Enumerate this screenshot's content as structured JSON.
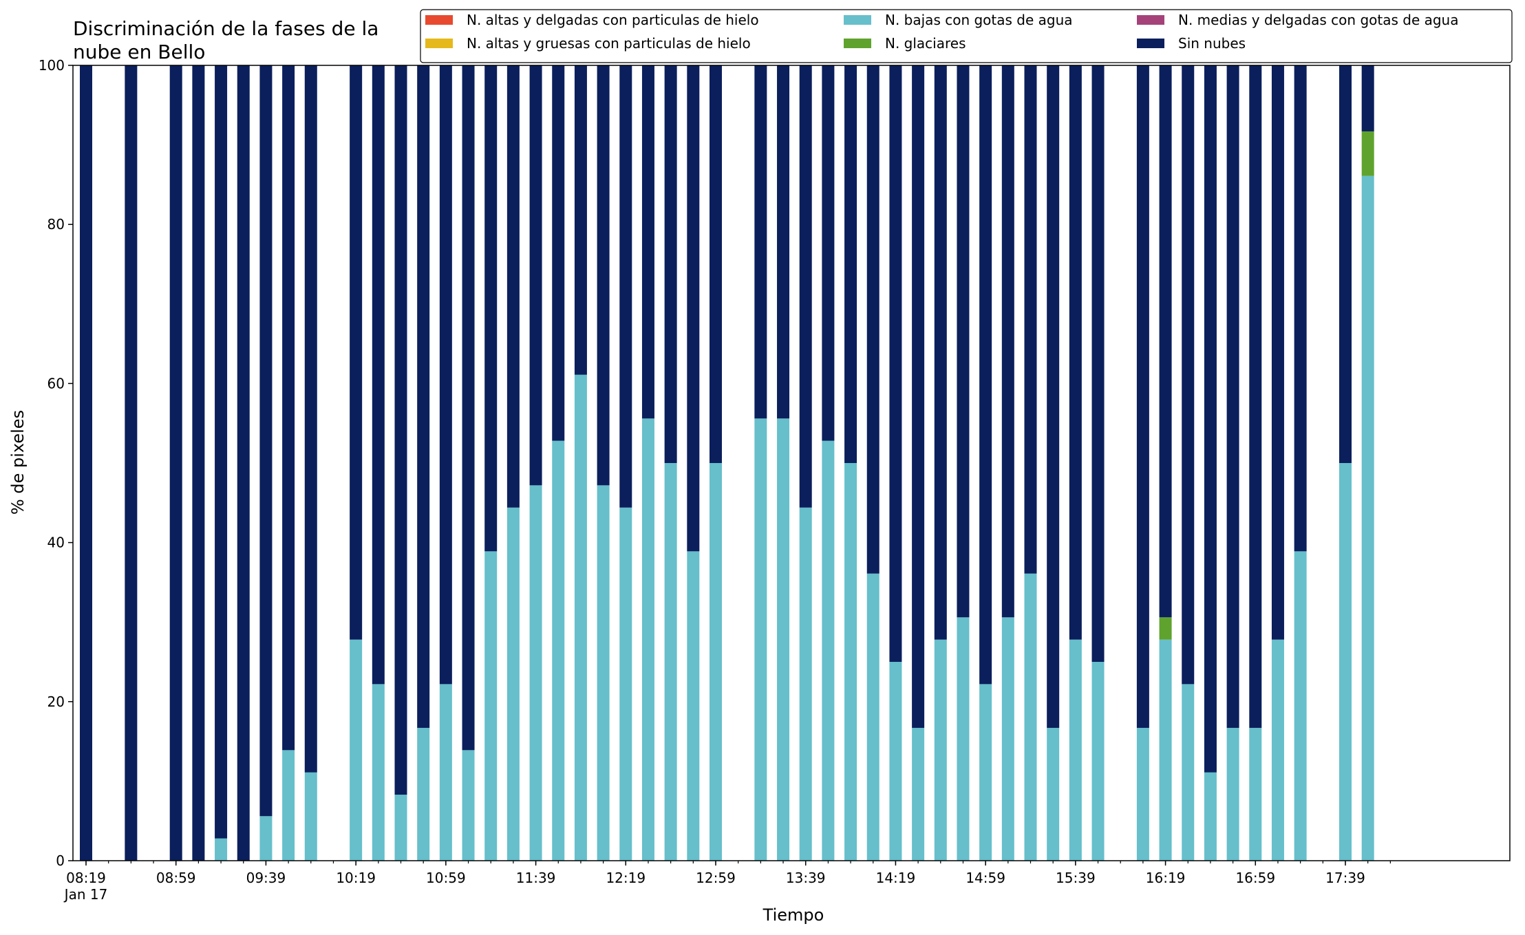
{
  "chart_data": {
    "type": "bar",
    "stacked": true,
    "title": "Discriminación de la fases de la\nnube en Bello",
    "xlabel": "Tiempo",
    "ylabel": "% de pixeles",
    "ylim": [
      0,
      100
    ],
    "yticks": [
      0,
      20,
      40,
      60,
      80,
      100
    ],
    "grid": false,
    "legend_position": "top-right",
    "xticks": [
      {
        "x": "08:19",
        "label": "08:19\nJan 17"
      },
      {
        "x": "08:59",
        "label": "08:59"
      },
      {
        "x": "09:39",
        "label": "09:39"
      },
      {
        "x": "10:19",
        "label": "10:19"
      },
      {
        "x": "10:59",
        "label": "10:59"
      },
      {
        "x": "11:39",
        "label": "11:39"
      },
      {
        "x": "12:19",
        "label": "12:19"
      },
      {
        "x": "12:59",
        "label": "12:59"
      },
      {
        "x": "13:39",
        "label": "13:39"
      },
      {
        "x": "14:19",
        "label": "14:19"
      },
      {
        "x": "14:59",
        "label": "14:59"
      },
      {
        "x": "15:39",
        "label": "15:39"
      },
      {
        "x": "16:19",
        "label": "16:19"
      },
      {
        "x": "16:59",
        "label": "16:59"
      },
      {
        "x": "17:39",
        "label": "17:39"
      }
    ],
    "x": [
      "08:19",
      "08:39",
      "08:59",
      "09:09",
      "09:19",
      "09:29",
      "09:39",
      "09:49",
      "09:59",
      "10:19",
      "10:29",
      "10:39",
      "10:49",
      "10:59",
      "11:09",
      "11:19",
      "11:29",
      "11:39",
      "11:49",
      "11:59",
      "12:09",
      "12:19",
      "12:29",
      "12:39",
      "12:49",
      "12:59",
      "13:19",
      "13:29",
      "13:39",
      "13:49",
      "13:59",
      "14:09",
      "14:19",
      "14:29",
      "14:39",
      "14:49",
      "14:59",
      "15:09",
      "15:19",
      "15:29",
      "15:39",
      "15:49",
      "16:09",
      "16:19",
      "16:29",
      "16:39",
      "16:49",
      "16:59",
      "17:09",
      "17:19",
      "17:39",
      "17:49"
    ],
    "series": [
      {
        "name": "N. altas y delgadas con particulas de hielo",
        "color": "#e84a2f",
        "values": [
          0,
          0,
          0,
          0,
          0,
          0,
          0,
          0,
          0,
          0,
          0,
          0,
          0,
          0,
          0,
          0,
          0,
          0,
          0,
          0,
          0,
          0,
          0,
          0,
          0,
          0,
          0,
          0,
          0,
          0,
          0,
          0,
          0,
          0,
          0,
          0,
          0,
          0,
          0,
          0,
          0,
          0,
          0,
          0,
          0,
          0,
          0,
          0,
          0,
          0,
          0,
          0
        ]
      },
      {
        "name": "N. altas y gruesas con particulas de hielo",
        "color": "#e5b91c",
        "values": [
          0,
          0,
          0,
          0,
          0,
          0,
          0,
          0,
          0,
          0,
          0,
          0,
          0,
          0,
          0,
          0,
          0,
          0,
          0,
          0,
          0,
          0,
          0,
          0,
          0,
          0,
          0,
          0,
          0,
          0,
          0,
          0,
          0,
          0,
          0,
          0,
          0,
          0,
          0,
          0,
          0,
          0,
          0,
          0,
          0,
          0,
          0,
          0,
          0,
          0,
          0,
          0
        ]
      },
      {
        "name": "N. bajas con gotas de agua",
        "color": "#66bfcb",
        "values": [
          0,
          0,
          0,
          0,
          2.8,
          0,
          5.6,
          13.9,
          11.1,
          27.8,
          22.2,
          8.3,
          16.7,
          22.2,
          13.9,
          38.9,
          44.4,
          47.2,
          52.8,
          61.1,
          47.2,
          44.4,
          55.6,
          50,
          38.9,
          50,
          55.6,
          55.6,
          44.4,
          52.8,
          50,
          36.1,
          25,
          16.7,
          27.8,
          30.6,
          22.2,
          30.6,
          36.1,
          16.7,
          27.8,
          25,
          16.7,
          27.8,
          22.2,
          11.1,
          16.7,
          16.7,
          27.8,
          38.9,
          50,
          86.1
        ]
      },
      {
        "name": "N. glaciares",
        "color": "#5fa32e",
        "values": [
          0,
          0,
          0,
          0,
          0,
          0,
          0,
          0,
          0,
          0,
          0,
          0,
          0,
          0,
          0,
          0,
          0,
          0,
          0,
          0,
          0,
          0,
          0,
          0,
          0,
          0,
          0,
          0,
          0,
          0,
          0,
          0,
          0,
          0,
          0,
          0,
          0,
          0,
          0,
          0,
          0,
          0,
          0,
          2.8,
          0,
          0,
          0,
          0,
          0,
          0,
          0,
          5.6
        ]
      },
      {
        "name": "N. medias y delgadas con gotas de agua",
        "color": "#a5427a",
        "values": [
          0,
          0,
          0,
          0,
          0,
          0,
          0,
          0,
          0,
          0,
          0,
          0,
          0,
          0,
          0,
          0,
          0,
          0,
          0,
          0,
          0,
          0,
          0,
          0,
          0,
          0,
          0,
          0,
          0,
          0,
          0,
          0,
          0,
          0,
          0,
          0,
          0,
          0,
          0,
          0,
          0,
          0,
          0,
          0,
          0,
          0,
          0,
          0,
          0,
          0,
          0,
          0
        ]
      },
      {
        "name": "Sin nubes",
        "color": "#0b1f5c",
        "values": [
          100,
          100,
          100,
          100,
          97.2,
          100,
          94.4,
          86.1,
          88.9,
          72.2,
          77.8,
          91.7,
          83.3,
          77.8,
          86.1,
          61.1,
          55.6,
          52.8,
          47.2,
          38.9,
          52.8,
          55.6,
          44.4,
          50,
          61.1,
          50,
          44.4,
          44.4,
          55.6,
          47.2,
          50,
          63.9,
          75,
          83.3,
          72.2,
          69.4,
          77.8,
          69.4,
          63.9,
          83.3,
          72.2,
          75,
          83.3,
          69.4,
          77.8,
          88.9,
          83.3,
          83.3,
          72.2,
          61.1,
          50,
          8.3
        ]
      }
    ]
  }
}
